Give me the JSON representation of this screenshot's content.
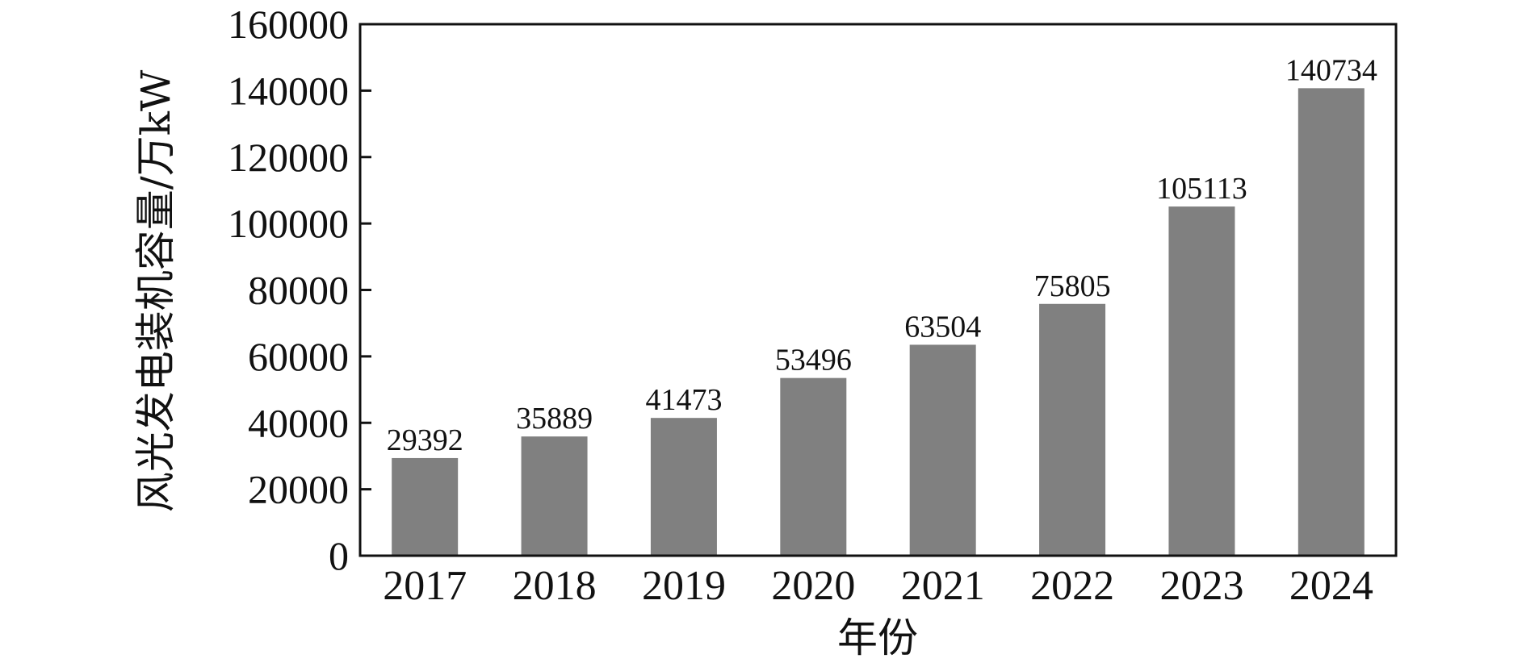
{
  "chart_data": {
    "type": "bar",
    "title": "",
    "xlabel": "年份",
    "ylabel": "风光发电装机容量/万kW",
    "categories": [
      "2017",
      "2018",
      "2019",
      "2020",
      "2021",
      "2022",
      "2023",
      "2024"
    ],
    "series": [
      {
        "values": [
          29392,
          35889,
          41473,
          53496,
          63504,
          75805,
          105113,
          140734
        ]
      }
    ],
    "data_labels": [
      "29392",
      "35889",
      "41473",
      "53496",
      "63504",
      "75805",
      "105113",
      "140734"
    ],
    "ylim": [
      0,
      160000
    ],
    "yticks": [
      0,
      20000,
      40000,
      60000,
      80000,
      100000,
      120000,
      140000,
      160000
    ],
    "ytick_labels": [
      "0",
      "20000",
      "40000",
      "60000",
      "80000",
      "100000",
      "120000",
      "140000",
      "160000"
    ],
    "bar_color": "#808080",
    "grid": false,
    "legend": "none"
  }
}
